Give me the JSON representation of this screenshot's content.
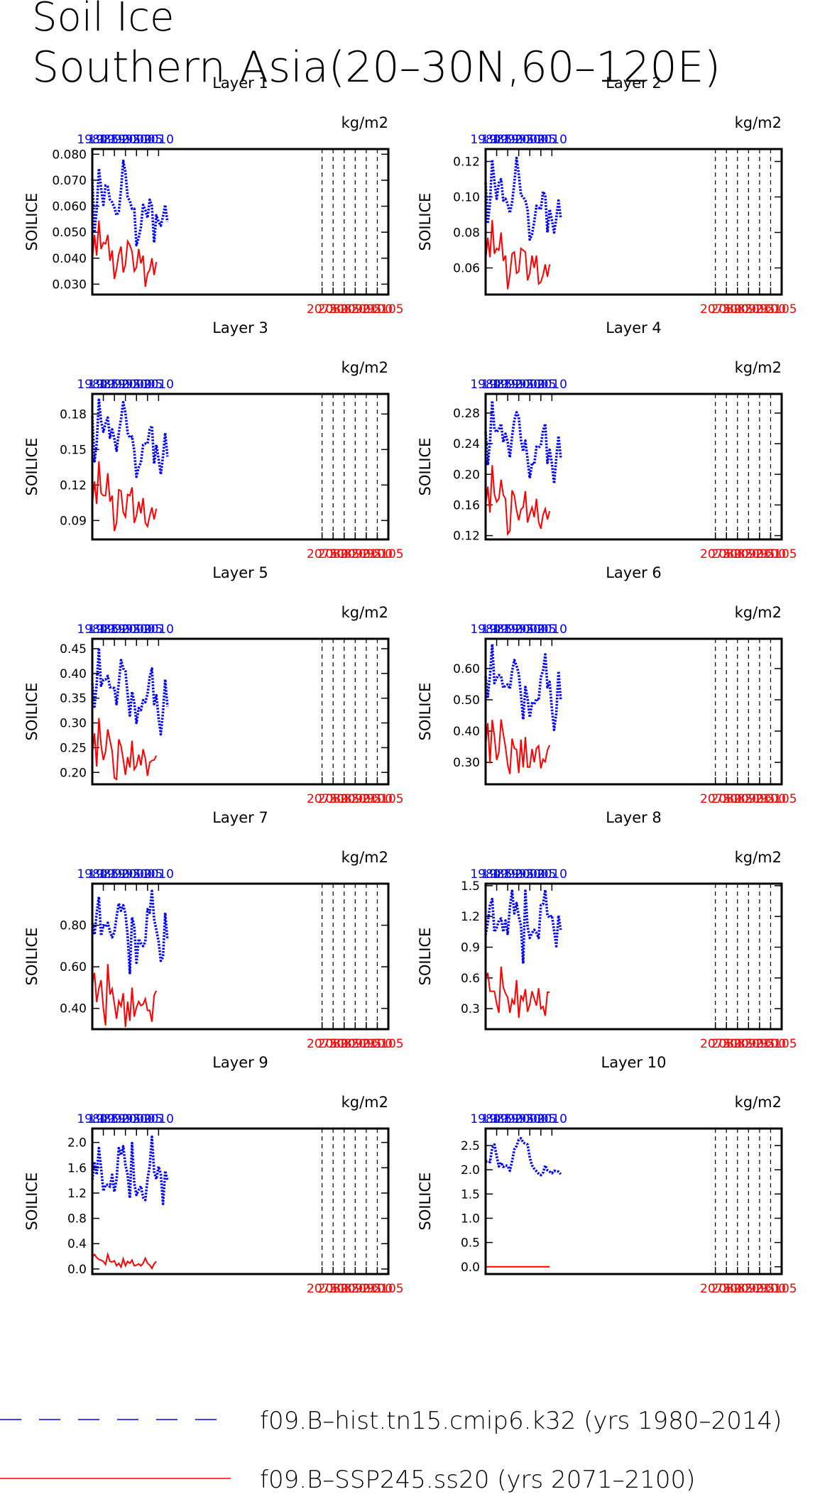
{
  "title_line1": "Soil Ice",
  "title_line2": "Southern Asia(20–30N,60–120E)",
  "chart_data": [
    {
      "type": "line",
      "title": "Layer 1",
      "ylabel": "SOILICE",
      "units": "kg/m2",
      "ylim": [
        0.026,
        0.082
      ],
      "yticks": [
        0.03,
        0.04,
        0.05,
        0.06,
        0.07,
        0.08
      ],
      "ytick_labels": [
        "0.030",
        "0.040",
        "0.050",
        "0.060",
        "0.070",
        "0.080"
      ],
      "series": [
        {
          "values": [
            0.0705,
            0.0505,
            0.0585,
            0.0745,
            0.067,
            0.0605,
            0.068,
            0.0675,
            0.0625,
            0.0615,
            0.0595,
            0.0565,
            0.058,
            0.0665,
            0.0775,
            0.073,
            0.0635,
            0.062,
            0.059,
            0.059,
            0.045,
            0.048,
            0.052,
            0.0605,
            0.0585,
            0.0555,
            0.0625,
            0.06,
            0.046,
            0.0565,
            0.054,
            0.0525,
            0.056,
            0.0605,
            0.054
          ]
        },
        {
          "values": [
            0.039,
            0.049,
            0.041,
            0.0545,
            0.0435,
            0.046,
            0.0455,
            0.049,
            0.039,
            0.043,
            0.032,
            0.036,
            0.0415,
            0.0445,
            0.0345,
            0.0375,
            0.0465,
            0.045,
            0.0425,
            0.035,
            0.0365,
            0.0435,
            0.038,
            0.041,
            0.029,
            0.034,
            0.0355,
            0.04,
            0.0335,
            0.0385
          ]
        }
      ]
    },
    {
      "type": "line",
      "title": "Layer 2",
      "ylabel": "SOILICE",
      "units": "kg/m2",
      "ylim": [
        0.045,
        0.127
      ],
      "yticks": [
        0.06,
        0.08,
        0.1,
        0.12
      ],
      "ytick_labels": [
        "0.06",
        "0.08",
        "0.10",
        "0.12"
      ],
      "series": [
        {
          "values": [
            0.108,
            0.085,
            0.097,
            0.121,
            0.109,
            0.099,
            0.108,
            0.11,
            0.098,
            0.099,
            0.096,
            0.091,
            0.097,
            0.108,
            0.122,
            0.113,
            0.101,
            0.1,
            0.098,
            0.093,
            0.076,
            0.079,
            0.086,
            0.095,
            0.094,
            0.093,
            0.103,
            0.101,
            0.08,
            0.093,
            0.087,
            0.08,
            0.088,
            0.098,
            0.088
          ]
        },
        {
          "values": [
            0.064,
            0.077,
            0.066,
            0.087,
            0.068,
            0.071,
            0.07,
            0.08,
            0.064,
            0.067,
            0.048,
            0.056,
            0.068,
            0.069,
            0.057,
            0.058,
            0.071,
            0.07,
            0.069,
            0.053,
            0.057,
            0.067,
            0.06,
            0.067,
            0.051,
            0.052,
            0.056,
            0.062,
            0.055,
            0.062
          ]
        }
      ]
    },
    {
      "type": "line",
      "title": "Layer 3",
      "ylabel": "SOILICE",
      "units": "kg/m2",
      "ylim": [
        0.074,
        0.197
      ],
      "yticks": [
        0.09,
        0.12,
        0.15,
        0.18
      ],
      "ytick_labels": [
        "0.09",
        "0.12",
        "0.15",
        "0.18"
      ],
      "series": [
        {
          "values": [
            0.178,
            0.14,
            0.155,
            0.192,
            0.174,
            0.165,
            0.172,
            0.177,
            0.16,
            0.167,
            0.159,
            0.149,
            0.164,
            0.176,
            0.19,
            0.181,
            0.164,
            0.16,
            0.161,
            0.149,
            0.127,
            0.135,
            0.139,
            0.154,
            0.155,
            0.155,
            0.167,
            0.17,
            0.138,
            0.154,
            0.142,
            0.129,
            0.144,
            0.164,
            0.144
          ]
        },
        {
          "values": [
            0.104,
            0.123,
            0.104,
            0.14,
            0.113,
            0.111,
            0.111,
            0.13,
            0.106,
            0.111,
            0.081,
            0.088,
            0.116,
            0.115,
            0.097,
            0.093,
            0.112,
            0.111,
            0.118,
            0.088,
            0.094,
            0.106,
            0.096,
            0.109,
            0.088,
            0.085,
            0.094,
            0.101,
            0.091,
            0.1
          ]
        }
      ]
    },
    {
      "type": "line",
      "title": "Layer 4",
      "ylabel": "SOILICE",
      "units": "kg/m2",
      "ylim": [
        0.115,
        0.305
      ],
      "yticks": [
        0.12,
        0.16,
        0.2,
        0.24,
        0.28
      ],
      "ytick_labels": [
        "0.12",
        "0.16",
        "0.20",
        "0.24",
        "0.28"
      ],
      "series": [
        {
          "values": [
            0.256,
            0.212,
            0.243,
            0.296,
            0.259,
            0.255,
            0.259,
            0.266,
            0.242,
            0.253,
            0.242,
            0.222,
            0.25,
            0.271,
            0.281,
            0.275,
            0.245,
            0.23,
            0.244,
            0.22,
            0.195,
            0.215,
            0.213,
            0.236,
            0.235,
            0.238,
            0.257,
            0.266,
            0.215,
            0.232,
            0.214,
            0.188,
            0.222,
            0.25,
            0.222
          ]
        },
        {
          "values": [
            0.159,
            0.184,
            0.15,
            0.212,
            0.174,
            0.164,
            0.168,
            0.193,
            0.173,
            0.168,
            0.122,
            0.126,
            0.179,
            0.172,
            0.153,
            0.14,
            0.154,
            0.157,
            0.178,
            0.137,
            0.148,
            0.157,
            0.144,
            0.168,
            0.138,
            0.129,
            0.147,
            0.155,
            0.141,
            0.152
          ]
        }
      ]
    },
    {
      "type": "line",
      "title": "Layer 5",
      "ylabel": "SOILICE",
      "units": "kg/m2",
      "ylim": [
        0.176,
        0.47
      ],
      "yticks": [
        0.2,
        0.25,
        0.3,
        0.35,
        0.4,
        0.45
      ],
      "ytick_labels": [
        "0.20",
        "0.25",
        "0.30",
        "0.35",
        "0.40",
        "0.45"
      ],
      "series": [
        {
          "values": [
            0.38,
            0.333,
            0.379,
            0.448,
            0.375,
            0.387,
            0.388,
            0.395,
            0.372,
            0.372,
            0.37,
            0.338,
            0.38,
            0.427,
            0.41,
            0.405,
            0.357,
            0.315,
            0.363,
            0.342,
            0.3,
            0.33,
            0.326,
            0.346,
            0.342,
            0.358,
            0.393,
            0.41,
            0.338,
            0.356,
            0.31,
            0.277,
            0.322,
            0.388,
            0.333
          ]
        },
        {
          "values": [
            0.237,
            0.279,
            0.212,
            0.31,
            0.255,
            0.225,
            0.242,
            0.287,
            0.265,
            0.243,
            0.189,
            0.186,
            0.267,
            0.253,
            0.226,
            0.195,
            0.231,
            0.21,
            0.264,
            0.206,
            0.213,
            0.236,
            0.214,
            0.247,
            0.228,
            0.193,
            0.22,
            0.224,
            0.225,
            0.234
          ]
        }
      ]
    },
    {
      "type": "line",
      "title": "Layer 6",
      "ylabel": "SOILICE",
      "units": "kg/m2",
      "ylim": [
        0.23,
        0.695
      ],
      "yticks": [
        0.3,
        0.4,
        0.5,
        0.6
      ],
      "ytick_labels": [
        "0.30",
        "0.40",
        "0.50",
        "0.60"
      ],
      "series": [
        {
          "values": [
            0.575,
            0.51,
            0.579,
            0.678,
            0.553,
            0.57,
            0.579,
            0.575,
            0.538,
            0.546,
            0.549,
            0.535,
            0.592,
            0.627,
            0.609,
            0.583,
            0.515,
            0.437,
            0.541,
            0.505,
            0.444,
            0.489,
            0.486,
            0.503,
            0.498,
            0.573,
            0.593,
            0.645,
            0.54,
            0.557,
            0.47,
            0.404,
            0.459,
            0.591,
            0.5
          ]
        },
        {
          "values": [
            0.352,
            0.425,
            0.297,
            0.436,
            0.385,
            0.308,
            0.332,
            0.437,
            0.391,
            0.349,
            0.293,
            0.263,
            0.376,
            0.345,
            0.341,
            0.266,
            0.373,
            0.284,
            0.381,
            0.285,
            0.285,
            0.343,
            0.3,
            0.345,
            0.353,
            0.281,
            0.31,
            0.302,
            0.339,
            0.355
          ]
        }
      ]
    },
    {
      "type": "line",
      "title": "Layer 7",
      "ylabel": "SOILICE",
      "units": "kg/m2",
      "ylim": [
        0.3,
        1.0
      ],
      "yticks": [
        0.4,
        0.6,
        0.8
      ],
      "ytick_labels": [
        "0.40",
        "0.60",
        "0.80"
      ],
      "series": [
        {
          "values": [
            0.81,
            0.755,
            0.858,
            0.937,
            0.75,
            0.8,
            0.793,
            0.812,
            0.77,
            0.742,
            0.766,
            0.84,
            0.905,
            0.87,
            0.896,
            0.855,
            0.75,
            0.57,
            0.838,
            0.795,
            0.62,
            0.734,
            0.714,
            0.7,
            0.72,
            0.877,
            0.86,
            0.965,
            0.829,
            0.778,
            0.722,
            0.629,
            0.647,
            0.86,
            0.73
          ]
        },
        {
          "values": [
            0.513,
            0.571,
            0.43,
            0.497,
            0.536,
            0.4,
            0.318,
            0.613,
            0.467,
            0.494,
            0.423,
            0.35,
            0.436,
            0.41,
            0.473,
            0.31,
            0.432,
            0.34,
            0.5,
            0.36,
            0.405,
            0.433,
            0.413,
            0.42,
            0.446,
            0.39,
            0.39,
            0.336,
            0.463,
            0.485
          ]
        }
      ]
    },
    {
      "type": "line",
      "title": "Layer 8",
      "ylabel": "SOILICE",
      "units": "kg/m2",
      "ylim": [
        0.1,
        1.52
      ],
      "yticks": [
        0.3,
        0.6,
        0.9,
        1.2,
        1.5
      ],
      "ytick_labels": [
        "0.3",
        "0.6",
        "0.9",
        "1.2",
        "1.5"
      ],
      "series": [
        {
          "values": [
            1.02,
            1.14,
            1.31,
            1.37,
            1.05,
            1.09,
            1.16,
            1.18,
            1.05,
            1.16,
            1.03,
            1.29,
            1.45,
            1.23,
            1.33,
            1.2,
            1.11,
            0.74,
            1.45,
            1.1,
            0.99,
            1.04,
            1.07,
            1.04,
            0.99,
            1.31,
            1.32,
            1.46,
            1.21,
            1.19,
            1.21,
            1.06,
            0.91,
            1.21,
            1.07
          ]
        },
        {
          "values": [
            0.58,
            0.65,
            0.47,
            0.47,
            0.47,
            0.35,
            0.26,
            0.71,
            0.51,
            0.45,
            0.41,
            0.26,
            0.39,
            0.34,
            0.58,
            0.21,
            0.43,
            0.38,
            0.49,
            0.27,
            0.34,
            0.47,
            0.4,
            0.33,
            0.5,
            0.3,
            0.32,
            0.23,
            0.46,
            0.46
          ]
        }
      ]
    },
    {
      "type": "line",
      "title": "Layer 9",
      "ylabel": "SOILICE",
      "units": "kg/m2",
      "ylim": [
        -0.08,
        2.22
      ],
      "yticks": [
        0.0,
        0.4,
        0.8,
        1.2,
        1.6,
        2.0
      ],
      "ytick_labels": [
        "0.0",
        "0.4",
        "0.8",
        "1.2",
        "1.6",
        "2.0"
      ],
      "series": [
        {
          "values": [
            1.41,
            1.67,
            1.49,
            1.91,
            1.6,
            1.23,
            1.33,
            1.33,
            1.3,
            1.49,
            1.22,
            1.42,
            1.91,
            1.8,
            1.94,
            1.64,
            1.49,
            1.12,
            1.99,
            1.36,
            1.17,
            1.25,
            1.31,
            1.13,
            1.09,
            1.42,
            1.63,
            2.09,
            1.54,
            1.42,
            1.62,
            1.5,
            1.03,
            1.55,
            1.4
          ]
        },
        {
          "values": [
            0.19,
            0.23,
            0.18,
            0.15,
            0.14,
            0.12,
            0.07,
            0.23,
            0.12,
            0.11,
            0.13,
            0.05,
            0.09,
            0.03,
            0.16,
            0.05,
            0.12,
            0.09,
            0.14,
            0.05,
            0.06,
            0.08,
            0.05,
            0.09,
            0.17,
            0.09,
            0.06,
            0.01,
            0.08,
            0.12
          ]
        }
      ]
    },
    {
      "type": "line",
      "title": "Layer 10",
      "ylabel": "SOILICE",
      "units": "kg/m2",
      "ylim": [
        -0.15,
        2.85
      ],
      "yticks": [
        0.0,
        0.5,
        1.0,
        1.5,
        2.0,
        2.5
      ],
      "ytick_labels": [
        "0.0",
        "0.5",
        "1.0",
        "1.5",
        "2.0",
        "2.5"
      ],
      "series": [
        {
          "values": [
            2.17,
            2.18,
            2.16,
            2.45,
            2.52,
            2.28,
            2.07,
            2.15,
            2.06,
            2.09,
            2.08,
            1.98,
            2.18,
            2.42,
            2.49,
            2.62,
            2.65,
            2.56,
            2.54,
            2.52,
            2.25,
            2.09,
            2.02,
            1.97,
            1.92,
            1.89,
            1.94,
            2.09,
            1.99,
            1.96,
            1.93,
            1.98,
            1.97,
            1.96,
            1.91
          ]
        },
        {
          "values": [
            0,
            0,
            0,
            0,
            0,
            0,
            0,
            0,
            0,
            0,
            0,
            0,
            0,
            0,
            0,
            0,
            0,
            0,
            0,
            0,
            0,
            0,
            0,
            0,
            0,
            0,
            0,
            0,
            0,
            0
          ]
        }
      ]
    }
  ],
  "top_axis": {
    "color": "#0000ff",
    "start": 1980,
    "ticks": [
      1980,
      1985,
      1990,
      1995,
      2000,
      2005,
      2010
    ]
  },
  "bottom_axis": {
    "color": "#ff0000",
    "start": 2071,
    "ticks": [
      2075,
      2080,
      2085,
      2090,
      2095,
      2100,
      2105
    ]
  },
  "legend": [
    {
      "label": "f09.B–hist.tn15.cmip6.k32 (yrs 1980–2014)",
      "color": "#0000ff",
      "style": "dashed"
    },
    {
      "label": "f09.B–SSP245.ss20 (yrs 2071–2100)",
      "color": "#ff0000",
      "style": "solid"
    }
  ],
  "colors": {
    "hist": "#0000ff",
    "ssp": "#ff0000",
    "axes": "#000000"
  }
}
